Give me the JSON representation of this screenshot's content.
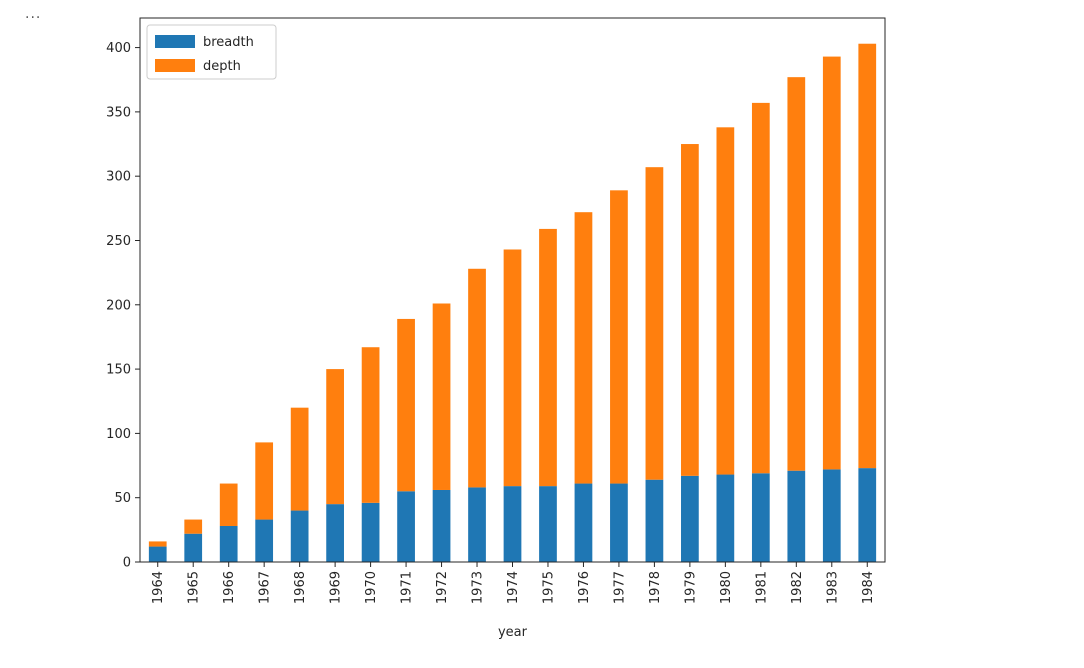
{
  "cell": {
    "ellipsis": "..."
  },
  "colors": {
    "breadth": "#1f77b4",
    "depth": "#ff7f0e",
    "axis": "#262626"
  },
  "chart_data": {
    "type": "bar",
    "stacked": true,
    "title": "",
    "xlabel": "year",
    "ylabel": "",
    "categories": [
      "1964",
      "1965",
      "1966",
      "1967",
      "1968",
      "1969",
      "1970",
      "1971",
      "1972",
      "1973",
      "1974",
      "1975",
      "1976",
      "1977",
      "1978",
      "1979",
      "1980",
      "1981",
      "1982",
      "1983",
      "1984"
    ],
    "series": [
      {
        "name": "breadth",
        "values": [
          12,
          22,
          28,
          33,
          40,
          45,
          46,
          55,
          56,
          58,
          59,
          59,
          61,
          61,
          64,
          67,
          68,
          69,
          71,
          72,
          73
        ]
      },
      {
        "name": "depth",
        "values": [
          4,
          11,
          33,
          60,
          80,
          105,
          121,
          134,
          145,
          170,
          184,
          200,
          211,
          228,
          243,
          258,
          270,
          288,
          306,
          321,
          330
        ]
      }
    ],
    "ylim": [
      0,
      423
    ],
    "yticks": [
      0,
      50,
      100,
      150,
      200,
      250,
      300,
      350,
      400
    ],
    "xtick_rotation": 90,
    "grid": false,
    "legend": "upper-left"
  }
}
